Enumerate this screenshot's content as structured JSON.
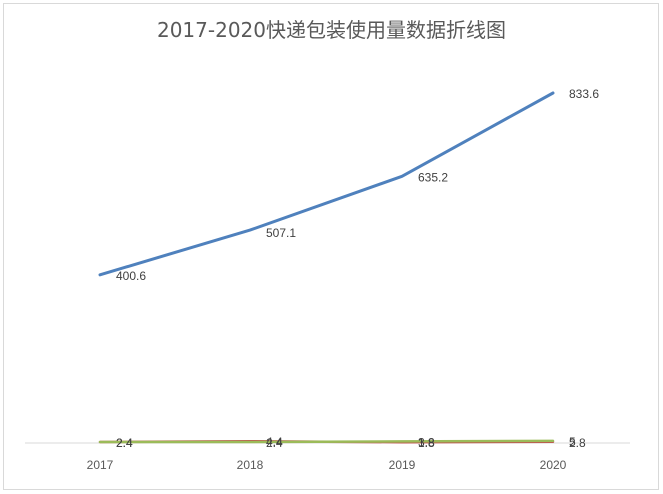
{
  "chart_data": {
    "type": "line",
    "title": "2017-2020快递包装使用量数据折线图",
    "categories": [
      "2017",
      "2018",
      "2019",
      "2020"
    ],
    "ylim": [
      0,
      900
    ],
    "grid": false,
    "legend": "none",
    "series": [
      {
        "values": [
          400.6,
          507.1,
          635.2,
          833.6
        ],
        "color": "#4f81bd",
        "labels": [
          "400.6",
          "507.1",
          "635.2",
          "833.6"
        ]
      },
      {
        "values": [
          2.4,
          4.4,
          1.8,
          2.8
        ],
        "color": "#c0504d",
        "labels": [
          "2.4",
          "4.4",
          "1.8",
          "2.8"
        ]
      },
      {
        "values": [
          2.4,
          2.4,
          3.8,
          5.0
        ],
        "color": "#9bbb59",
        "labels": [
          "2.4",
          "2.4",
          "3.8",
          "5"
        ]
      }
    ]
  }
}
